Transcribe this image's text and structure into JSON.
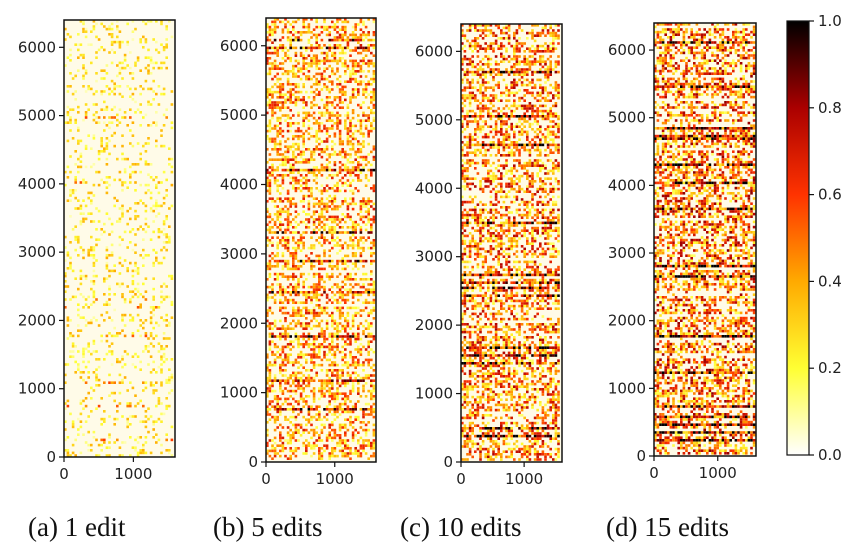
{
  "chart_data": {
    "type": "heatmap",
    "colormap": "hot_r",
    "colorbar": {
      "min": 0.0,
      "max": 1.0,
      "ticks": [
        "0.0",
        "0.2",
        "0.4",
        "0.6",
        "0.8",
        "1.0"
      ],
      "stops": [
        "#ffffff",
        "#ffff33",
        "#ffaa00",
        "#ff3300",
        "#aa0000",
        "#000000"
      ]
    },
    "xlim": [
      0,
      1600
    ],
    "ylim": [
      0,
      6400
    ],
    "xticks": [
      "0",
      "1000"
    ],
    "yticks": [
      "0",
      "1000",
      "2000",
      "3000",
      "4000",
      "5000",
      "6000"
    ],
    "panels": [
      {
        "caption": "(a)  1 edit",
        "density": 0.16,
        "mean_value": 0.18
      },
      {
        "caption": "(b)  5 edits",
        "density": 0.45,
        "mean_value": 0.32
      },
      {
        "caption": "(c)  10 edits",
        "density": 0.5,
        "mean_value": 0.36
      },
      {
        "caption": "(d)  15 edits",
        "density": 0.54,
        "mean_value": 0.38
      }
    ]
  }
}
